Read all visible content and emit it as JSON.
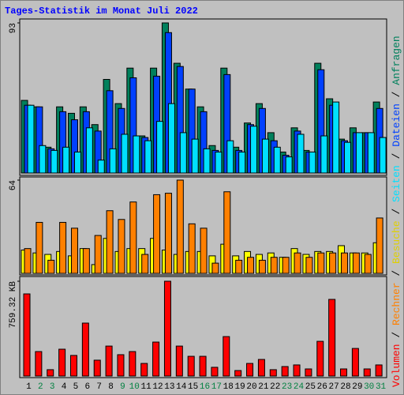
{
  "legend_separator": " / ",
  "chart_data": [
    {
      "type": "bar",
      "title": "Tages-Statistik im Monat Juli 2022",
      "categories": [
        "1",
        "2",
        "3",
        "4",
        "5",
        "6",
        "7",
        "8",
        "9",
        "10",
        "11",
        "12",
        "13",
        "14",
        "15",
        "16",
        "17",
        "18",
        "19",
        "20",
        "21",
        "22",
        "23",
        "24",
        "25",
        "26",
        "27",
        "28",
        "29",
        "30",
        "31"
      ],
      "category_colors": [
        "#000000",
        "#008040",
        "#008040",
        "#000000",
        "#000000",
        "#000000",
        "#000000",
        "#000000",
        "#008040",
        "#008040",
        "#000000",
        "#000000",
        "#000000",
        "#000000",
        "#000000",
        "#008040",
        "#008040",
        "#000000",
        "#000000",
        "#000000",
        "#000000",
        "#000000",
        "#008040",
        "#008040",
        "#000000",
        "#000000",
        "#000000",
        "#000000",
        "#000000",
        "#008040",
        "#008040"
      ],
      "ylim": [
        0,
        93
      ],
      "yticks": [
        93
      ],
      "series": [
        {
          "name": "Anfragen",
          "color": "#00805c",
          "values": [
            45,
            41,
            16,
            41,
            37,
            41,
            30,
            58,
            43,
            65,
            23,
            65,
            93,
            68,
            52,
            41,
            17,
            65,
            16,
            31,
            43,
            25,
            13,
            28,
            14,
            68,
            46,
            21,
            28,
            25,
            44
          ]
        },
        {
          "name": "Dateien",
          "color": "#0040ff",
          "values": [
            42,
            41,
            15,
            38,
            33,
            38,
            26,
            51,
            40,
            59,
            22,
            60,
            87,
            66,
            52,
            38,
            14,
            61,
            14,
            30,
            40,
            20,
            11,
            26,
            13,
            64,
            42,
            20,
            25,
            25,
            40
          ]
        },
        {
          "name": "Seiten",
          "color": "#00e0ff",
          "values": [
            42,
            17,
            14,
            16,
            13,
            28,
            8,
            15,
            24,
            23,
            20,
            32,
            43,
            25,
            21,
            15,
            13,
            20,
            13,
            29,
            21,
            16,
            10,
            24,
            13,
            23,
            44,
            19,
            25,
            25,
            22
          ]
        }
      ]
    },
    {
      "type": "bar",
      "ylim": [
        0,
        64
      ],
      "yticks": [
        64
      ],
      "series": [
        {
          "name": "Besuche",
          "color": "#ffff00",
          "values": [
            16,
            14,
            13,
            15,
            12,
            17,
            6,
            24,
            15,
            17,
            17,
            24,
            16,
            13,
            15,
            15,
            12,
            20,
            12,
            15,
            13,
            14,
            11,
            17,
            13,
            15,
            15,
            19,
            14,
            14,
            21
          ]
        },
        {
          "name": "Rechner",
          "color": "#ff8000",
          "values": [
            17,
            35,
            9,
            35,
            31,
            17,
            26,
            43,
            37,
            49,
            13,
            54,
            55,
            64,
            34,
            31,
            7,
            56,
            9,
            11,
            9,
            11,
            11,
            14,
            11,
            14,
            14,
            14,
            14,
            13,
            38
          ]
        }
      ]
    },
    {
      "type": "bar",
      "ylim": [
        0,
        759.32
      ],
      "yticks": [
        {
          "value": 759.32,
          "label": "759.32 KB"
        }
      ],
      "series": [
        {
          "name": "Volumen",
          "color": "#ff0000",
          "values": [
            658,
            196,
            51,
            215,
            165,
            424,
            127,
            240,
            171,
            196,
            101,
            272,
            759.32,
            240,
            158,
            158,
            70,
            316,
            44,
            101,
            133,
            51,
            76,
            89,
            57,
            278,
            614,
            57,
            221,
            57,
            89
          ]
        }
      ]
    }
  ]
}
